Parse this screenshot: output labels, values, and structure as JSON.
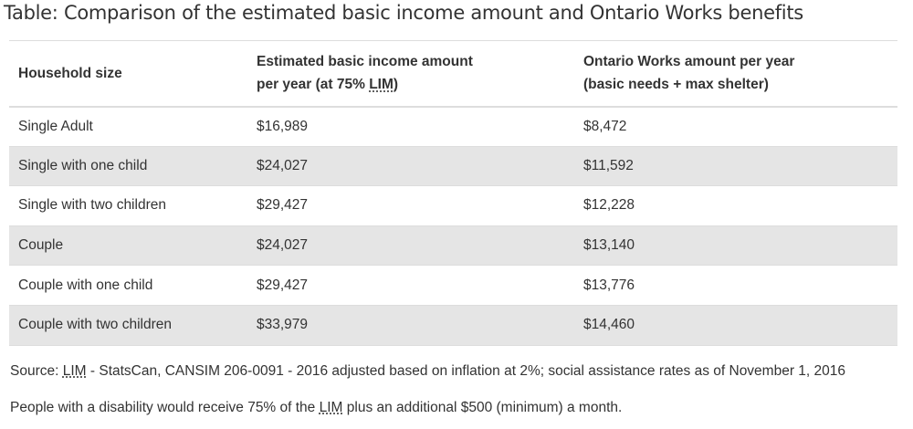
{
  "caption": "Table: Comparison of the estimated basic income amount and Ontario Works benefits",
  "table": {
    "headers": {
      "household": "Household size",
      "basic_line1": "Estimated basic income amount",
      "basic_line2_pre": "per year (at 75% ",
      "basic_line2_abbr": "LIM",
      "basic_line2_post": ")",
      "ow_line1": "Ontario Works amount per year",
      "ow_line2": "(basic needs + max shelter)"
    },
    "rows": [
      {
        "household": "Single Adult",
        "basic": "$16,989",
        "ow": "$8,472"
      },
      {
        "household": "Single with one child",
        "basic": "$24,027",
        "ow": "$11,592"
      },
      {
        "household": "Single with two children",
        "basic": "$29,427",
        "ow": "$12,228"
      },
      {
        "household": "Couple",
        "basic": "$24,027",
        "ow": "$13,140"
      },
      {
        "household": "Couple with one child",
        "basic": "$29,427",
        "ow": "$13,776"
      },
      {
        "household": "Couple with two children",
        "basic": "$33,979",
        "ow": "$14,460"
      }
    ]
  },
  "notes": {
    "source_pre": "Source: ",
    "source_abbr": "LIM",
    "source_post": " - StatsCan, CANSIM 206-0091 - 2016 adjusted based on inflation at 2%; social assistance rates as of November 1, 2016",
    "disability_pre": "People with a disability would receive 75% of the ",
    "disability_abbr": "LIM",
    "disability_post": " plus an additional $500 (minimum) a month."
  },
  "colors": {
    "text": "#333333",
    "stripe": "#e5e5e5",
    "border": "#dddddd"
  }
}
